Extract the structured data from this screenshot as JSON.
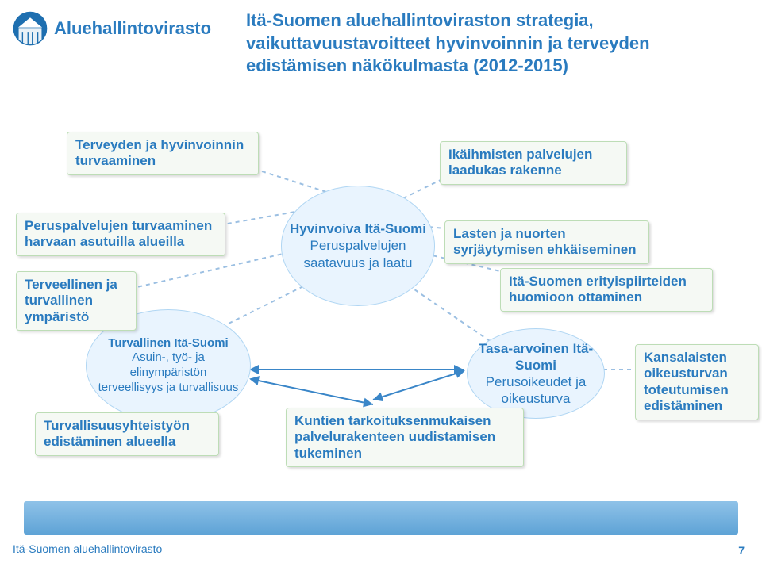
{
  "logo_text": "Aluehallintovirasto",
  "title": "Itä-Suomen aluehallintoviraston strategia, vaikuttavuustavoitteet  hyvinvoinnin ja terveyden edistämisen näkökulmasta (2012-2015)",
  "boxes": {
    "b1": "Terveyden ja hyvinvoinnin turvaaminen",
    "b2": "Ikäihmisten palvelujen laadukas rakenne",
    "b3": "Peruspalvelujen turvaaminen harvaan asutuilla alueilla",
    "b4": "Lasten ja nuorten syrjäytymisen ehkäiseminen",
    "b5": "Terveellinen ja turvallinen ympäristö",
    "b6": "Itä-Suomen erityispiirteiden huomioon ottaminen",
    "b7": "Turvallisuusyhteistyön edistäminen alueella",
    "b8": "Kuntien tarkoituksenmukaisen palvelurakenteen uudistamisen tukeminen",
    "b9": "Kansalaisten oikeusturvan toteutumisen edistäminen"
  },
  "ellipses": {
    "e1_head": "Hyvinvoiva Itä-Suomi",
    "e1_sub": "Peruspalvelujen saatavuus ja laatu",
    "e2_head": "Turvallinen Itä-Suomi",
    "e2_sub": "Asuin-, työ- ja elinympäristön terveellisyys ja turvallisuus",
    "e3_head": "Tasa-arvoinen Itä-Suomi",
    "e3_sub": "Perusoikeudet ja oikeusturva"
  },
  "footer_text": "Itä-Suomen aluehallintovirasto",
  "footer_num": "7",
  "colors": {
    "brand": "#2a7bbf",
    "box_bg": "#f5f9f4",
    "box_border": "#bdddb6",
    "ellipse_bg": "#e9f4fe",
    "ellipse_border": "#b0d6f3",
    "dash_line": "#9bbfe2",
    "solid_line": "#3a86c8"
  },
  "layout": {
    "boxes": {
      "b1": [
        84,
        166,
        220
      ],
      "b2": [
        554,
        178,
        214
      ],
      "b3": [
        20,
        268,
        242
      ],
      "b4": [
        560,
        278,
        236
      ],
      "b5": [
        20,
        342,
        130
      ],
      "b6": [
        630,
        338,
        246
      ],
      "b7": [
        44,
        520,
        210
      ],
      "b8": [
        360,
        514,
        278
      ],
      "b9": [
        800,
        434,
        134
      ]
    },
    "ellipses": {
      "e1": [
        354,
        234,
        192,
        150
      ],
      "e2": [
        108,
        390,
        206,
        140
      ],
      "e3": [
        588,
        414,
        172,
        112
      ]
    }
  }
}
